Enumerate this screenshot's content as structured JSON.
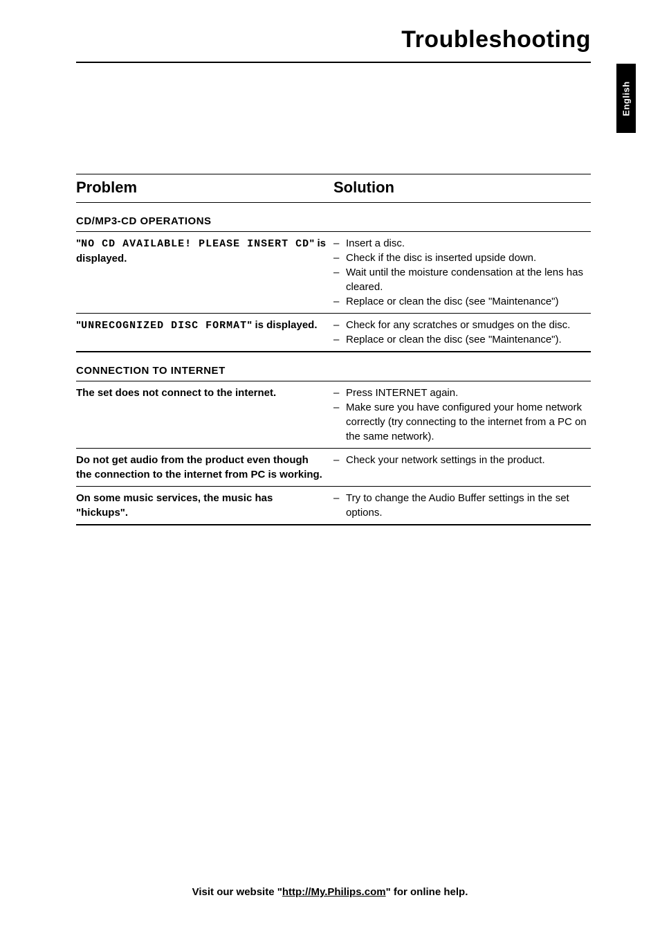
{
  "title": "Troubleshooting",
  "side_tab": "English",
  "header": {
    "problem": "Problem",
    "solution": "Solution"
  },
  "sections": [
    {
      "title": "CD/MP3-CD OPERATIONS",
      "rows": [
        {
          "problem_parts": [
            {
              "pre": "\"",
              "lcd": "NO CD AVAILABLE! PLEASE INSERT CD",
              "post": "\" is displayed."
            }
          ],
          "solutions": [
            "Insert a disc.",
            "Check if the disc is inserted upside down.",
            "Wait until the moisture condensation at the lens has cleared.",
            "Replace or clean the disc (see \"Maintenance\")"
          ]
        },
        {
          "problem_parts": [
            {
              "pre": "\"",
              "lcd": "UNRECOGNIZED DISC FORMAT",
              "post": "\" is displayed."
            }
          ],
          "solutions": [
            "Check for any scratches or smudges on the disc.",
            "Replace or clean the disc (see \"Maintenance\")."
          ]
        }
      ]
    },
    {
      "title": "CONNECTION TO INTERNET",
      "rows": [
        {
          "problem_parts": [
            {
              "pre": "",
              "lcd": "",
              "post": "The set does not connect to the internet."
            }
          ],
          "solutions": [
            "Press INTERNET again.",
            "Make sure you have configured your home network correctly (try connecting to the internet from a PC on the same network)."
          ]
        },
        {
          "problem_parts": [
            {
              "pre": "",
              "lcd": "",
              "post": "Do not get audio from the product even though the connection to the internet from PC is working."
            }
          ],
          "solutions": [
            "Check your network settings in the product."
          ]
        },
        {
          "problem_parts": [
            {
              "pre": "",
              "lcd": "",
              "post": "On some music services, the music has \"hickups\"."
            }
          ],
          "solutions": [
            "Try to change the Audio Buffer settings in the set options."
          ]
        }
      ]
    }
  ],
  "footer": {
    "pre": "Visit our website \"",
    "url": "http://My.Philips.com",
    "post": "\" for online help."
  }
}
